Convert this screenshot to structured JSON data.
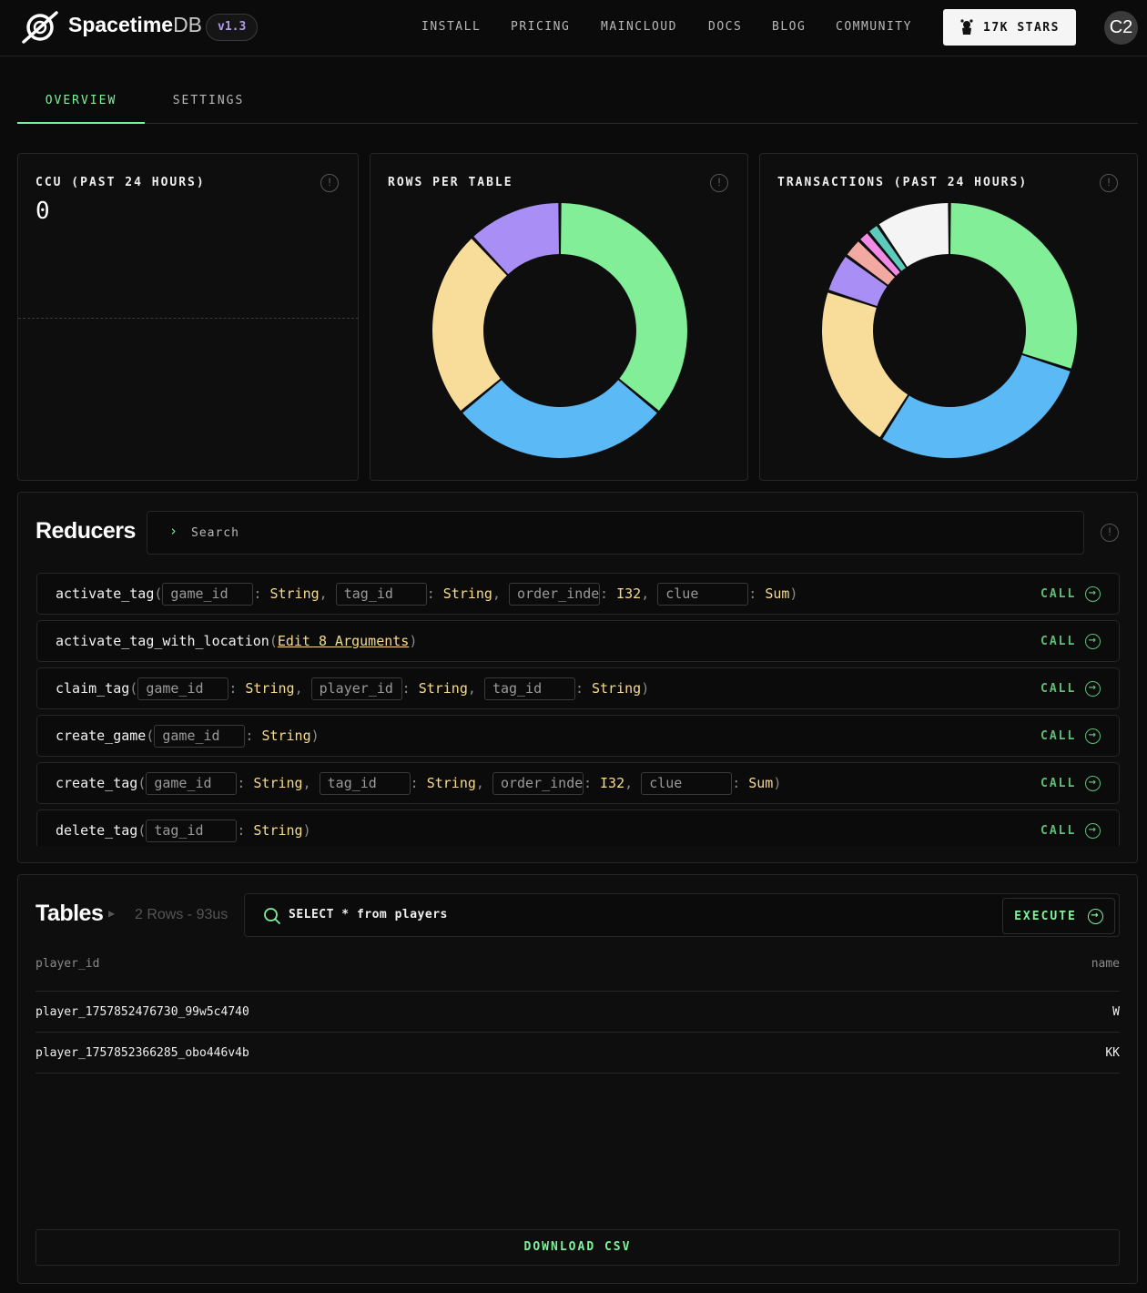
{
  "header": {
    "brand_bold": "Spacetime",
    "brand_light": "DB",
    "version": "v1.3",
    "nav": [
      "INSTALL",
      "PRICING",
      "MAINCLOUD",
      "DOCS",
      "BLOG",
      "COMMUNITY"
    ],
    "stars_label": "17K STARS",
    "avatar_initials": "C2"
  },
  "tabs": {
    "overview": "OVERVIEW",
    "settings": "SETTINGS"
  },
  "ccu": {
    "title": "CCU (PAST 24 HOURS)",
    "value": "0"
  },
  "rows_per_table": {
    "title": "ROWS PER TABLE",
    "chart_data": {
      "type": "pie",
      "donut": true,
      "title": "ROWS PER TABLE",
      "slices": [
        {
          "value": 36,
          "color": "#82ee98"
        },
        {
          "value": 28,
          "color": "#5bb9f5"
        },
        {
          "value": 24,
          "color": "#f7dc9a"
        },
        {
          "value": 12,
          "color": "#a98ef5"
        }
      ]
    }
  },
  "transactions": {
    "title": "TRANSACTIONS (PAST 24 HOURS)",
    "chart_data": {
      "type": "pie",
      "donut": true,
      "title": "TRANSACTIONS (PAST 24 HOURS)",
      "slices": [
        {
          "value": 30,
          "color": "#82ee98"
        },
        {
          "value": 29,
          "color": "#5bb9f5"
        },
        {
          "value": 21,
          "color": "#f7dc9a"
        },
        {
          "value": 5,
          "color": "#a98ef5"
        },
        {
          "value": 2.5,
          "color": "#f2a9a2"
        },
        {
          "value": 1.5,
          "color": "#f28be6"
        },
        {
          "value": 1.5,
          "color": "#5ccbbc"
        },
        {
          "value": 9.5,
          "color": "#f4f4f4"
        }
      ]
    }
  },
  "reducers": {
    "title": "Reducers",
    "search_placeholder": "Search",
    "call_label": "CALL",
    "items": [
      {
        "name": "activate_tag",
        "args": [
          {
            "name": "game_id",
            "type": "String"
          },
          {
            "name": "tag_id",
            "type": "String"
          },
          {
            "name": "order_index",
            "type": "I32"
          },
          {
            "name": "clue",
            "type": "Sum"
          }
        ]
      },
      {
        "name": "activate_tag_with_location",
        "edit_label": "Edit 8 Arguments",
        "args": []
      },
      {
        "name": "claim_tag",
        "args": [
          {
            "name": "game_id",
            "type": "String"
          },
          {
            "name": "player_id",
            "type": "String"
          },
          {
            "name": "tag_id",
            "type": "String"
          }
        ]
      },
      {
        "name": "create_game",
        "args": [
          {
            "name": "game_id",
            "type": "String"
          }
        ]
      },
      {
        "name": "create_tag",
        "args": [
          {
            "name": "game_id",
            "type": "String"
          },
          {
            "name": "tag_id",
            "type": "String"
          },
          {
            "name": "order_index",
            "type": "I32"
          },
          {
            "name": "clue",
            "type": "Sum"
          }
        ]
      },
      {
        "name": "delete_tag",
        "args": [
          {
            "name": "tag_id",
            "type": "String"
          }
        ]
      }
    ]
  },
  "tables": {
    "title": "Tables",
    "rows_info": "2 Rows - 93us",
    "query": "SELECT * from players",
    "execute_label": "EXECUTE",
    "columns": [
      "player_id",
      "name"
    ],
    "rows": [
      [
        "player_1757852476730_99w5c4740",
        "W"
      ],
      [
        "player_1757852366285_obo446v4b",
        "KK"
      ]
    ],
    "download_label": "DOWNLOAD CSV"
  }
}
